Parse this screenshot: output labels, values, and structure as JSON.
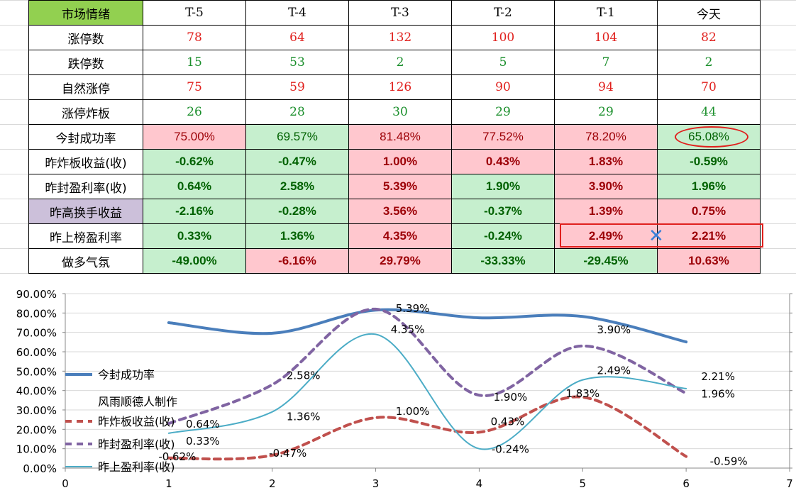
{
  "table": {
    "corner": "市场情绪",
    "headers": [
      "T-5",
      "T-4",
      "T-3",
      "T-2",
      "T-1",
      "今天"
    ],
    "rows": [
      {
        "label": "涨停数",
        "style": "int",
        "values": [
          "78",
          "64",
          "132",
          "100",
          "104",
          "82"
        ],
        "colors": [
          "red",
          "red",
          "red",
          "red",
          "red",
          "red"
        ]
      },
      {
        "label": "跌停数",
        "style": "int",
        "values": [
          "15",
          "53",
          "2",
          "5",
          "7",
          "2"
        ],
        "colors": [
          "green",
          "green",
          "green",
          "green",
          "green",
          "green"
        ]
      },
      {
        "label": "自然涨停",
        "style": "int",
        "values": [
          "75",
          "59",
          "126",
          "90",
          "94",
          "70"
        ],
        "colors": [
          "red",
          "red",
          "red",
          "red",
          "red",
          "red"
        ]
      },
      {
        "label": "涨停炸板",
        "style": "int",
        "values": [
          "26",
          "28",
          "30",
          "29",
          "29",
          "44"
        ],
        "colors": [
          "green",
          "green",
          "green",
          "green",
          "green",
          "green"
        ]
      },
      {
        "label": "今封成功率",
        "style": "pct",
        "values": [
          "75.00%",
          "69.57%",
          "81.48%",
          "77.52%",
          "78.20%",
          "65.08%"
        ],
        "colors": [
          "r",
          "g",
          "r",
          "r",
          "r",
          "g"
        ]
      },
      {
        "label": "昨炸板收益(收)",
        "style": "pctb",
        "values": [
          "-0.62%",
          "-0.47%",
          "1.00%",
          "0.43%",
          "1.83%",
          "-0.59%"
        ],
        "colors": [
          "g",
          "g",
          "r",
          "r",
          "r",
          "g"
        ]
      },
      {
        "label": "昨封盈利率(收)",
        "style": "pctb",
        "values": [
          "0.64%",
          "2.58%",
          "5.39%",
          "1.90%",
          "3.90%",
          "1.96%"
        ],
        "colors": [
          "g",
          "g",
          "r",
          "g",
          "r",
          "g"
        ]
      },
      {
        "label": "昨高换手收益",
        "style": "pctb",
        "values": [
          "-2.16%",
          "-0.28%",
          "3.56%",
          "-0.37%",
          "1.39%",
          "0.75%"
        ],
        "colors": [
          "g",
          "g",
          "r",
          "g",
          "r",
          "r"
        ]
      },
      {
        "label": "昨上榜盈利率",
        "style": "pctb",
        "values": [
          "0.33%",
          "1.36%",
          "4.35%",
          "-0.24%",
          "2.49%",
          "2.21%"
        ],
        "colors": [
          "g",
          "g",
          "r",
          "g",
          "r",
          "r"
        ]
      },
      {
        "label": "做多气氛",
        "style": "pctb",
        "values": [
          "-49.00%",
          "-6.16%",
          "29.79%",
          "-33.33%",
          "-29.45%",
          "10.63%"
        ],
        "colors": [
          "g",
          "r",
          "r",
          "g",
          "g",
          "r"
        ]
      }
    ]
  },
  "watermark": "风雨顺德人",
  "colors": {
    "header_green": "#92d050",
    "header_purple": "#ccc0da",
    "fill_green": "#c6efce",
    "fill_red": "#ffc7ce",
    "text_green": "#006100",
    "text_red": "#9c0006",
    "marker": "#e0201d",
    "x_mark": "#3a7fd8"
  },
  "chart_data": {
    "type": "line",
    "xlim": [
      0,
      7
    ],
    "ylim": [
      0,
      90
    ],
    "x_ticks": [
      "0",
      "1",
      "2",
      "3",
      "4",
      "5",
      "6",
      "7"
    ],
    "y_ticks": [
      "0.00%",
      "10.00%",
      "20.00%",
      "30.00%",
      "40.00%",
      "50.00%",
      "60.00%",
      "70.00%",
      "80.00%",
      "90.00%"
    ],
    "x": [
      1,
      2,
      3,
      4,
      5,
      6
    ],
    "series": [
      {
        "name": "今封成功率",
        "values": [
          75.0,
          69.57,
          81.48,
          77.52,
          78.2,
          65.08
        ],
        "color": "#4a7ebb",
        "style": "solid",
        "width": 4,
        "labels": [
          "",
          "",
          "",
          "",
          "",
          ""
        ]
      },
      {
        "name": "昨炸板收益(收)",
        "values": [
          5.2,
          6.6,
          26.0,
          18.5,
          36.6,
          6.0
        ],
        "color": "#c0504d",
        "style": "dash",
        "width": 4,
        "labels": [
          "-0.62%",
          "-0.47%",
          "1.00%",
          "0.43%",
          "1.83%",
          "-0.59%"
        ]
      },
      {
        "name": "昨封盈利率(收)",
        "values": [
          23.0,
          43.0,
          82.0,
          37.6,
          63.0,
          38.6
        ],
        "color": "#8064a2",
        "style": "dash",
        "width": 4,
        "labels": [
          "0.64%",
          "2.58%",
          "5.39%",
          "1.90%",
          "3.90%",
          "1.96%"
        ]
      },
      {
        "name": "昨上盈利率(收)",
        "values": [
          18.0,
          29.0,
          69.0,
          10.0,
          45.5,
          41.0
        ],
        "color": "#4bacc6",
        "style": "solid",
        "width": 2,
        "labels": [
          "0.33%",
          "1.36%",
          "4.35%",
          "-0.24%",
          "2.49%",
          "2.21%"
        ]
      }
    ],
    "legend_note": "风雨顺德人制作",
    "legend": "left"
  }
}
